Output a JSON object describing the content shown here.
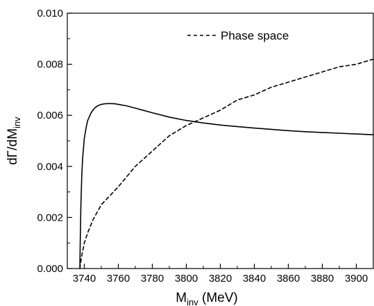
{
  "chart_data": {
    "type": "line",
    "xlabel": {
      "main": "M",
      "sub": "inv",
      "unit": " (MeV)"
    },
    "ylabel": {
      "main": "dΓ/dM",
      "sub": "inv"
    },
    "xlim": [
      3730,
      3910
    ],
    "ylim": [
      0,
      0.01
    ],
    "x_ticks": [
      "3740",
      "3760",
      "3780",
      "3800",
      "3820",
      "3840",
      "3860",
      "3880",
      "3900"
    ],
    "y_ticks": [
      "0.000",
      "0.002",
      "0.004",
      "0.006",
      "0.008",
      "0.010"
    ],
    "grid": false,
    "legend_position": "top-right",
    "series": [
      {
        "style": "solid",
        "color": "#000000",
        "points": [
          [
            3737.4,
            0.0
          ],
          [
            3737.6,
            0.001
          ],
          [
            3738.0,
            0.0025
          ],
          [
            3738.5,
            0.0036
          ],
          [
            3739.0,
            0.0043
          ],
          [
            3740.0,
            0.0051
          ],
          [
            3741.0,
            0.0055
          ],
          [
            3742.0,
            0.0058
          ],
          [
            3744.0,
            0.0061
          ],
          [
            3746.0,
            0.00628
          ],
          [
            3748.0,
            0.00638
          ],
          [
            3750.0,
            0.00643
          ],
          [
            3752.0,
            0.00645
          ],
          [
            3754.0,
            0.00646
          ],
          [
            3756.0,
            0.00646
          ],
          [
            3758.0,
            0.00645
          ],
          [
            3760.0,
            0.00643
          ],
          [
            3765.0,
            0.00637
          ],
          [
            3770.0,
            0.00628
          ],
          [
            3775.0,
            0.00619
          ],
          [
            3780.0,
            0.0061
          ],
          [
            3790.0,
            0.00593
          ],
          [
            3800.0,
            0.0058
          ],
          [
            3810.0,
            0.0057
          ],
          [
            3820.0,
            0.00562
          ],
          [
            3830.0,
            0.00556
          ],
          [
            3840.0,
            0.0055
          ],
          [
            3850.0,
            0.00545
          ],
          [
            3860.0,
            0.0054
          ],
          [
            3870.0,
            0.00536
          ],
          [
            3880.0,
            0.00533
          ],
          [
            3890.0,
            0.0053
          ],
          [
            3900.0,
            0.00527
          ],
          [
            3910.0,
            0.00524
          ]
        ]
      },
      {
        "name": "Phase space",
        "style": "dashed",
        "color": "#000000",
        "points": [
          [
            3737.4,
            0.0
          ],
          [
            3737.8,
            0.0002
          ],
          [
            3738.5,
            0.0005
          ],
          [
            3740.0,
            0.001
          ],
          [
            3742.0,
            0.0014
          ],
          [
            3745.0,
            0.0019
          ],
          [
            3750.0,
            0.0025
          ],
          [
            3760.0,
            0.0032
          ],
          [
            3770.0,
            0.004
          ],
          [
            3780.0,
            0.0046
          ],
          [
            3790.0,
            0.0052
          ],
          [
            3800.0,
            0.0056
          ],
          [
            3810.0,
            0.0059
          ],
          [
            3820.0,
            0.0062
          ],
          [
            3830.0,
            0.0066
          ],
          [
            3840.0,
            0.0068
          ],
          [
            3850.0,
            0.0071
          ],
          [
            3860.0,
            0.0073
          ],
          [
            3870.0,
            0.0075
          ],
          [
            3880.0,
            0.0077
          ],
          [
            3890.0,
            0.0079
          ],
          [
            3900.0,
            0.008
          ],
          [
            3910.0,
            0.0082
          ]
        ]
      }
    ]
  }
}
